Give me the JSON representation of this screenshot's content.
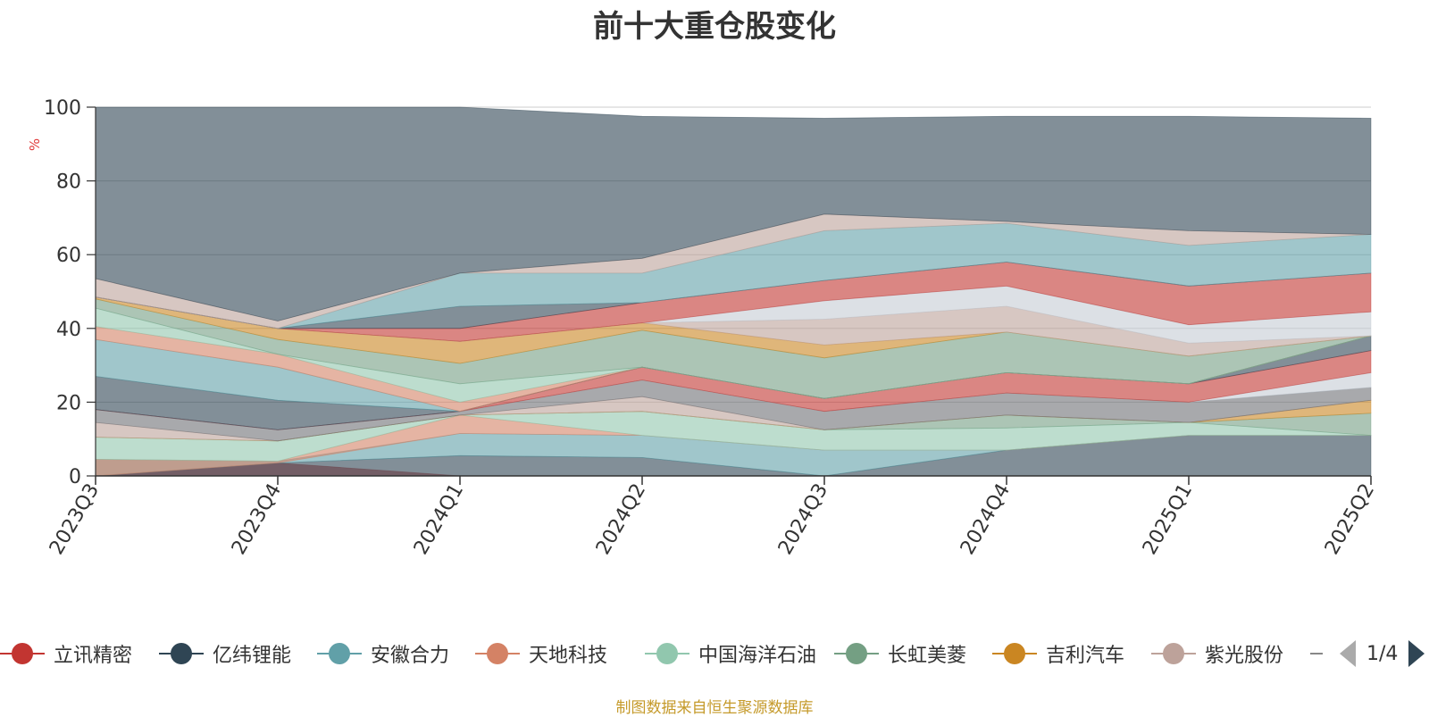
{
  "chart_data": {
    "type": "area",
    "title": "前十大重仓股变化",
    "ylabel": "%",
    "ylim": [
      0,
      100
    ],
    "y_ticks": [
      0,
      20,
      40,
      60,
      80,
      100
    ],
    "categories": [
      "2023Q3",
      "2023Q4",
      "2024Q1",
      "2024Q2",
      "2024Q3",
      "2024Q4",
      "2025Q1",
      "2025Q2"
    ],
    "grid": true,
    "legend_position": "bottom",
    "bands": [
      {
        "color": "#c23531",
        "lower": [
          0,
          0,
          0,
          0,
          0,
          0,
          0,
          0
        ],
        "upper": [
          0,
          3.5,
          0,
          0,
          0,
          0,
          0,
          0
        ]
      },
      {
        "color": "#2f4554",
        "lower": [
          0,
          0,
          0,
          0,
          0,
          0,
          0,
          0
        ],
        "upper": [
          0,
          3.5,
          5.5,
          5,
          0,
          7,
          11,
          11
        ]
      },
      {
        "color": "#61a0a8",
        "lower": [
          0,
          3.5,
          5.5,
          5,
          0,
          7,
          11,
          11
        ],
        "upper": [
          4.5,
          4,
          11.5,
          11,
          7,
          7,
          11,
          11
        ]
      },
      {
        "color": "#d48265",
        "lower": [
          0,
          3.5,
          11.5,
          11,
          7,
          7,
          11,
          11
        ],
        "upper": [
          4.5,
          4,
          16.5,
          11,
          7,
          7,
          11,
          11
        ]
      },
      {
        "color": "#91c7ae",
        "lower": [
          4.5,
          4,
          16.5,
          11,
          7,
          7,
          11,
          11
        ],
        "upper": [
          10.5,
          9.5,
          16.5,
          17.5,
          12.5,
          13,
          14.5,
          11
        ]
      },
      {
        "color": "#749f83",
        "lower": [
          10.5,
          9.5,
          16.5,
          17.5,
          12.5,
          13,
          14.5,
          11
        ],
        "upper": [
          10.5,
          9.5,
          16.5,
          17.5,
          12.5,
          16.5,
          14.5,
          17
        ]
      },
      {
        "color": "#ca8622",
        "lower": [
          10.5,
          9.5,
          16.5,
          17.5,
          12.5,
          16.5,
          14.5,
          17
        ],
        "upper": [
          10.5,
          9.5,
          16.5,
          17.5,
          12.5,
          16.5,
          14.5,
          20.5
        ]
      },
      {
        "color": "#bda29a",
        "lower": [
          10.5,
          9.5,
          16.5,
          17.5,
          12.5,
          16.5,
          14.5,
          20.5
        ],
        "upper": [
          14.5,
          9.5,
          16.5,
          21.5,
          12.5,
          16.5,
          14.5,
          20.5
        ]
      },
      {
        "color": "#6e7074",
        "lower": [
          14.5,
          9.5,
          16.5,
          21.5,
          12.5,
          16.5,
          14.5,
          20.5
        ],
        "upper": [
          18,
          12.5,
          17.5,
          26,
          17.5,
          22.5,
          20,
          24
        ]
      },
      {
        "color": "#c4ccd3",
        "lower": [
          18,
          12.5,
          17.5,
          26,
          17.5,
          22.5,
          20,
          24
        ],
        "upper": [
          18,
          12.5,
          17.5,
          26,
          17.5,
          22.5,
          20,
          28
        ]
      },
      {
        "color": "#c23531",
        "lower": [
          18,
          12.5,
          17.5,
          26,
          17.5,
          22.5,
          20,
          28
        ],
        "upper": [
          18,
          12.5,
          17.5,
          29.5,
          21,
          28,
          25,
          34
        ]
      },
      {
        "color": "#2f4554",
        "lower": [
          18,
          12.5,
          17.5,
          29.5,
          21,
          28,
          25,
          34
        ],
        "upper": [
          27,
          20.5,
          17.5,
          29.5,
          21,
          28,
          25,
          38
        ]
      },
      {
        "color": "#61a0a8",
        "lower": [
          27,
          20.5,
          17.5,
          29.5,
          21,
          28,
          25,
          38
        ],
        "upper": [
          37,
          29.5,
          17.5,
          29.5,
          21,
          28,
          25,
          38
        ]
      },
      {
        "color": "#d48265",
        "lower": [
          37,
          29.5,
          17.5,
          29.5,
          21,
          28,
          25,
          38
        ],
        "upper": [
          40.5,
          33,
          20,
          29.5,
          21,
          28,
          25,
          38
        ]
      },
      {
        "color": "#91c7ae",
        "lower": [
          40.5,
          33,
          20,
          29.5,
          21,
          28,
          25,
          38
        ],
        "upper": [
          45.5,
          33,
          25,
          29.5,
          21,
          28,
          25,
          38
        ]
      },
      {
        "color": "#749f83",
        "lower": [
          45.5,
          33,
          25,
          29.5,
          21,
          28,
          25,
          38
        ],
        "upper": [
          48,
          37,
          30.5,
          39.5,
          32,
          39,
          32.5,
          38
        ]
      },
      {
        "color": "#ca8622",
        "lower": [
          48,
          37,
          30.5,
          39.5,
          32,
          39,
          32.5,
          38
        ],
        "upper": [
          48.5,
          40,
          36.5,
          41.5,
          35.5,
          39,
          32.5,
          38
        ]
      },
      {
        "color": "#bda29a",
        "lower": [
          48.5,
          40,
          36.5,
          41.5,
          35.5,
          39,
          32.5,
          38
        ],
        "upper": [
          48.5,
          40,
          36.5,
          41.5,
          42.5,
          46,
          36,
          38
        ]
      },
      {
        "color": "#c4ccd3",
        "lower": [
          48.5,
          40,
          36.5,
          41.5,
          42.5,
          46,
          36,
          38
        ],
        "upper": [
          48.5,
          40,
          36.5,
          41.5,
          47.5,
          51.5,
          41,
          44.5
        ]
      },
      {
        "color": "#c23531",
        "lower": [
          48.5,
          40,
          36.5,
          41.5,
          47.5,
          51.5,
          41,
          44.5
        ],
        "upper": [
          48.5,
          40,
          40,
          47,
          53,
          58,
          51.5,
          55
        ]
      },
      {
        "color": "#2f4554",
        "lower": [
          48.5,
          40,
          40,
          47,
          53,
          58,
          51.5,
          55
        ],
        "upper": [
          48.5,
          40,
          46,
          47,
          53,
          58,
          51.5,
          55
        ]
      },
      {
        "color": "#61a0a8",
        "lower": [
          48.5,
          40,
          46,
          47,
          53,
          58,
          51.5,
          55
        ],
        "upper": [
          48.5,
          40,
          55,
          55,
          66.5,
          68.5,
          62.5,
          65.5
        ]
      },
      {
        "color": "#bda29a",
        "lower": [
          48.5,
          40,
          55,
          55,
          66.5,
          68.5,
          62.5,
          65.5
        ],
        "upper": [
          53.5,
          42,
          55,
          59,
          71,
          69,
          66.5,
          65.5
        ]
      },
      {
        "color": "#2f4554",
        "lower": [
          53.5,
          42,
          55,
          59,
          71,
          69,
          66.5,
          65.5
        ],
        "upper": [
          100,
          100,
          100,
          97.5,
          97,
          97.5,
          97.5,
          97
        ]
      }
    ],
    "legend": {
      "items": [
        {
          "name": "立讯精密",
          "color": "#c23531"
        },
        {
          "name": "亿纬锂能",
          "color": "#2f4554"
        },
        {
          "name": "安徽合力",
          "color": "#61a0a8"
        },
        {
          "name": "天地科技",
          "color": "#d48265"
        },
        {
          "name": "中国海洋石油",
          "color": "#91c7ae"
        },
        {
          "name": "长虹美菱",
          "color": "#749f83"
        },
        {
          "name": "吉利汽车",
          "color": "#ca8622"
        },
        {
          "name": "紫光股份",
          "color": "#bda29a"
        }
      ],
      "page_indicator": "1/4"
    }
  },
  "source_note": "制图数据来自恒生聚源数据库"
}
